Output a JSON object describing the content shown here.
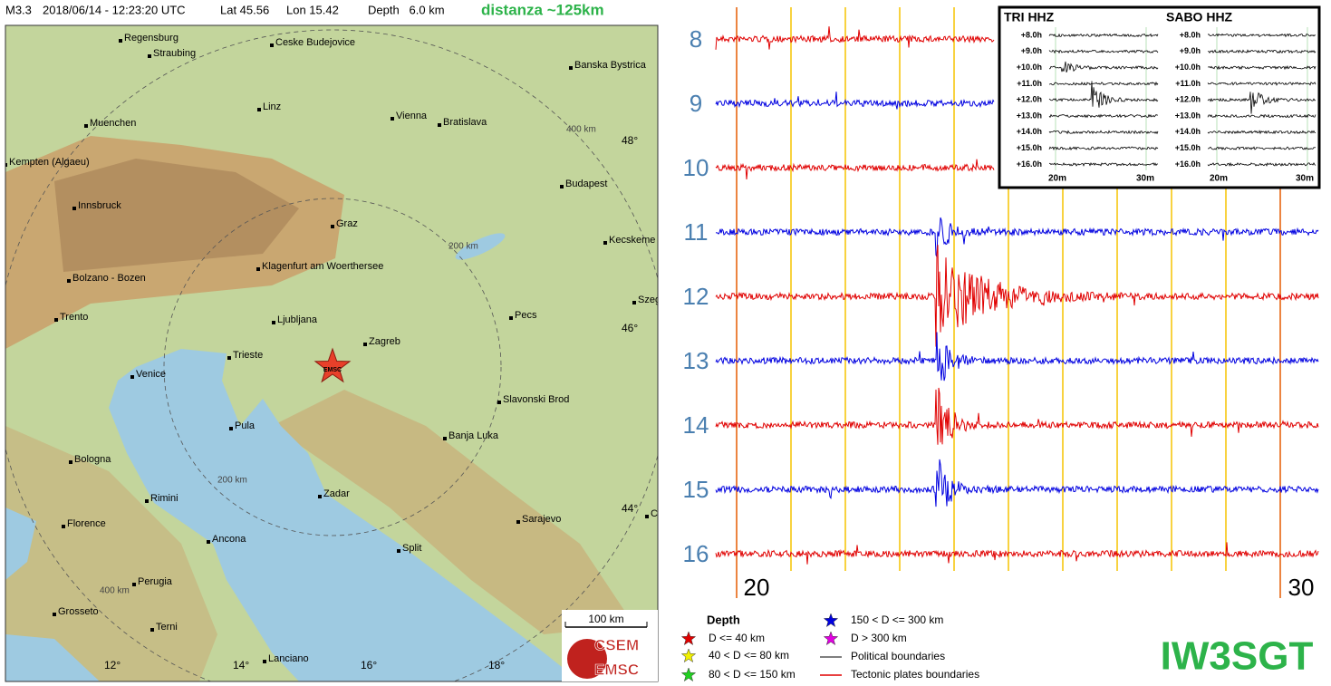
{
  "header": {
    "magnitude": "M3.3",
    "datetime": "2018/06/14 - 12:23:20 UTC",
    "latitude": "Lat 45.56",
    "longitude": "Lon 15.42",
    "depth": "Depth   6.0 km",
    "distance": "distanza ~125km"
  },
  "map": {
    "cities": [
      "Regensburg",
      "Straubing",
      "Ceske Budejovice",
      "Banska Bystrica",
      "Linz",
      "Vienna",
      "Bratislava",
      "Muenchen",
      "Kempten (Algaeu)",
      "Budapest",
      "Innsbruck",
      "Graz",
      "Kecskeme",
      "Klagenfurt am Woerthersee",
      "Bolzano - Bozen",
      "Szeg",
      "Trento",
      "Ljubljana",
      "Pecs",
      "Zagreb",
      "Trieste",
      "Venice",
      "Slavonski Brod",
      "Pula",
      "Banja Luka",
      "Bologna",
      "Zadar",
      "Rimini",
      "Florence",
      "C",
      "Sarajevo",
      "Ancona",
      "Split",
      "Perugia",
      "Grosseto",
      "Terni",
      "Lanciano"
    ],
    "latitude_labels": [
      "48°",
      "46°",
      "44°"
    ],
    "longitude_labels": [
      "12°",
      "14°",
      "16°",
      "18°"
    ],
    "distance_labels": [
      "400 km",
      "200 km",
      "200 km",
      "400 km"
    ],
    "epicenter_label": "EMSC",
    "scale_label": "100 km",
    "logo": [
      "CSEM",
      "EMSC"
    ]
  },
  "seismogram": {
    "hour_labels": [
      "8",
      "9",
      "10",
      "11",
      "12",
      "13",
      "14",
      "15",
      "16"
    ],
    "minute_labels": [
      "20",
      "30"
    ],
    "station": "IW3SGT",
    "inset": {
      "stations": [
        "TRI HHZ",
        "SABO HHZ"
      ],
      "offsets": [
        "+8.0h",
        "+9.0h",
        "+10.0h",
        "+11.0h",
        "+12.0h",
        "+13.0h",
        "+14.0h",
        "+15.0h",
        "+16.0h"
      ],
      "minute_labels": [
        "20m",
        "30m"
      ]
    }
  },
  "legend": {
    "title": "Depth",
    "items": [
      "D <= 40 km",
      "40 < D <= 80 km",
      "80 < D <= 150 km",
      "150 < D <= 300 km",
      "D > 300 km",
      "Political boundaries",
      "Tectonic plates boundaries"
    ]
  }
}
